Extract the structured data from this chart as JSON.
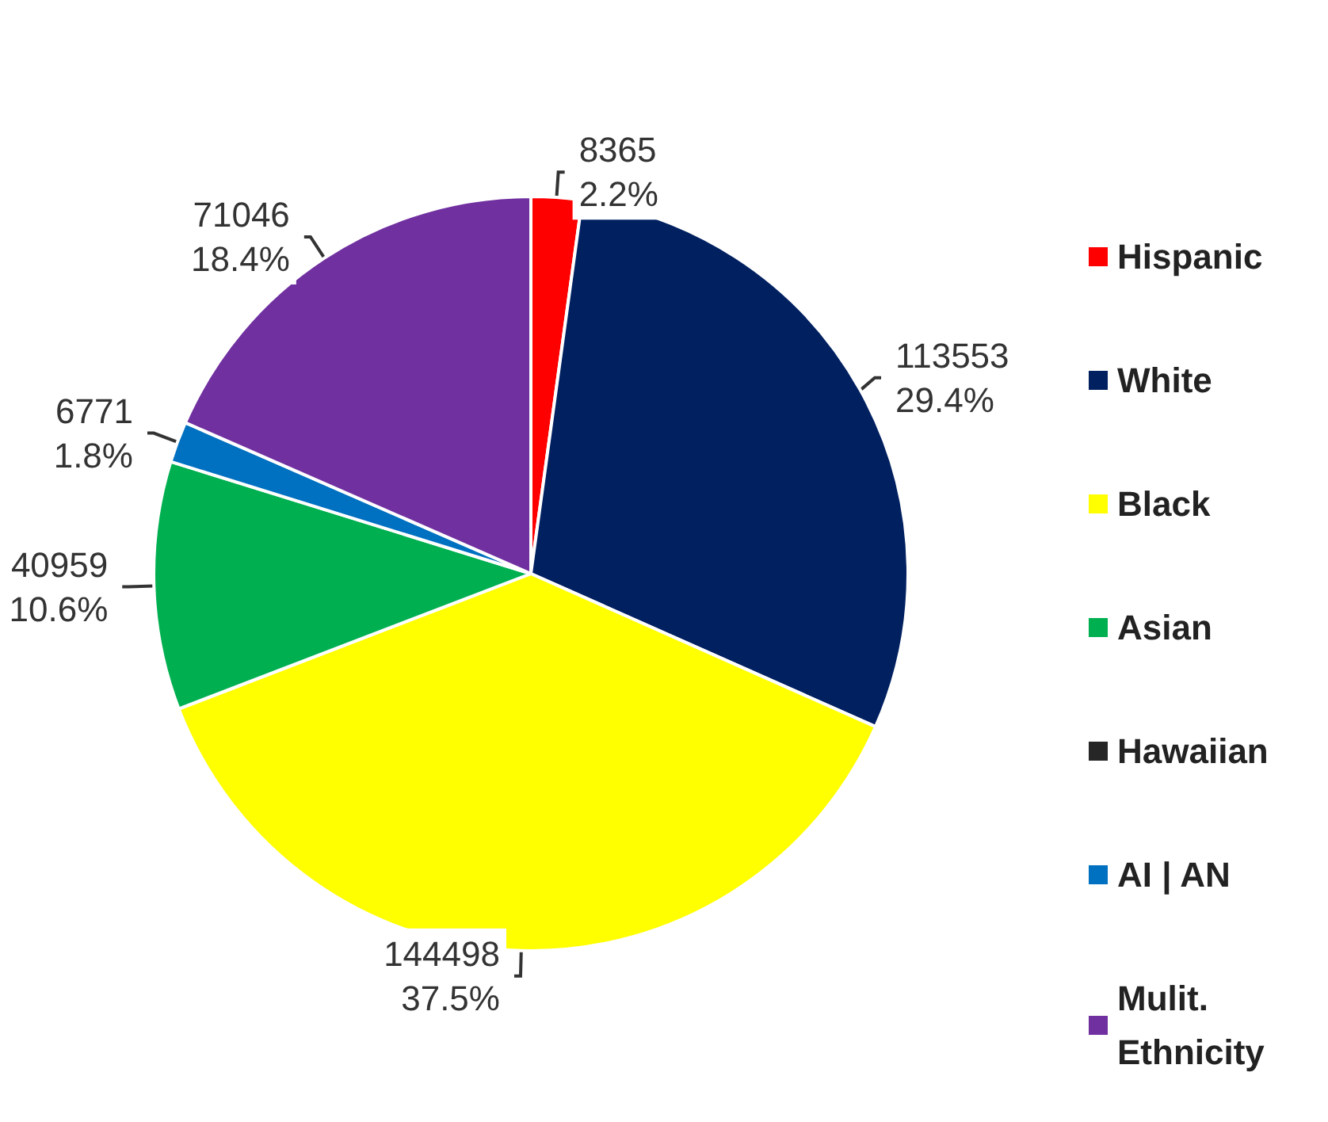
{
  "chart_data": {
    "type": "pie",
    "categories": [
      "Hispanic",
      "White",
      "Black",
      "Asian",
      "Hawaiian",
      "AI | AN",
      "Mulit. Ethnicity"
    ],
    "values": [
      8365,
      113553,
      144498,
      40959,
      null,
      6771,
      71046
    ],
    "value_labels": [
      "8365\n2.2%",
      "113553\n29.4%",
      "144498\n37.5%",
      "40959\n10.6%",
      null,
      "6771\n1.8%",
      "71046\n18.4%"
    ],
    "colors": [
      "#ff0000",
      "#002060",
      "#ffff00",
      "#00b050",
      "#262626",
      "#0070c0",
      "#7030a0"
    ],
    "legend": "right"
  }
}
